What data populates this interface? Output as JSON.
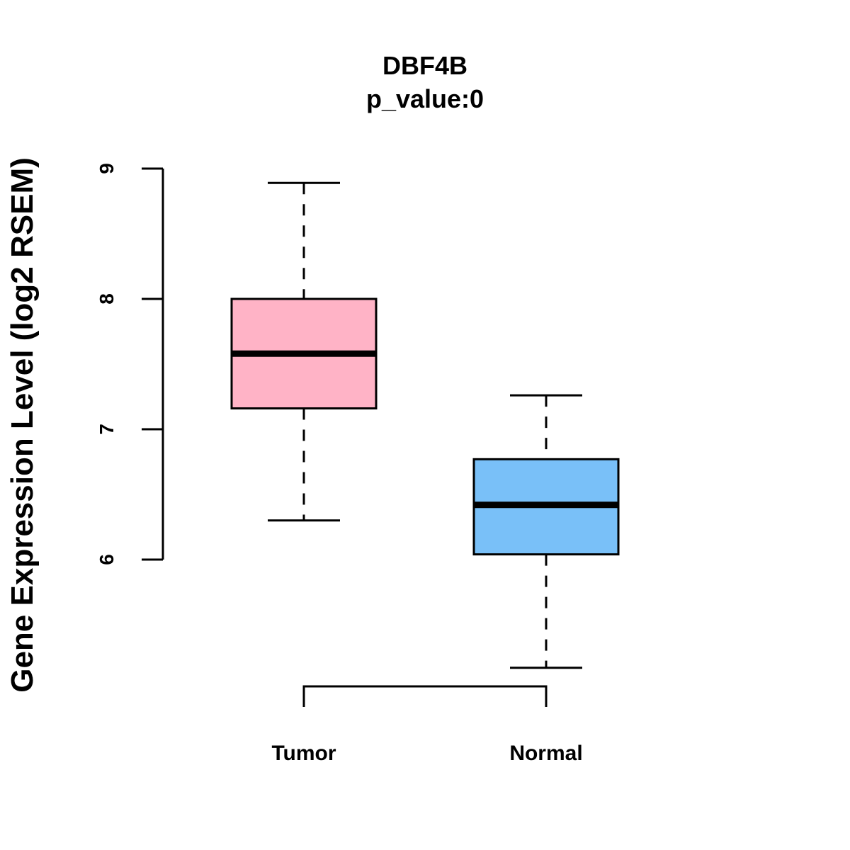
{
  "chart_data": {
    "type": "box",
    "title": "DBF4B",
    "subtitle": "p_value:0",
    "xlabel": "",
    "ylabel": "Gene Expression Level (log2 RSEM)",
    "yticks": [
      6,
      7,
      8,
      9
    ],
    "categories": [
      "Tumor",
      "Normal"
    ],
    "boxes": [
      {
        "name": "Tumor",
        "color": "#FFB3C6",
        "whisker_low": 6.3,
        "q1": 7.16,
        "median": 7.58,
        "q3": 8.0,
        "whisker_high": 8.89
      },
      {
        "name": "Normal",
        "color": "#79C0F8",
        "whisker_low": 5.17,
        "q1": 6.04,
        "median": 6.42,
        "q3": 6.77,
        "whisker_high": 7.26
      }
    ],
    "significance_bracket": {
      "from": "Tumor",
      "to": "Normal"
    }
  }
}
